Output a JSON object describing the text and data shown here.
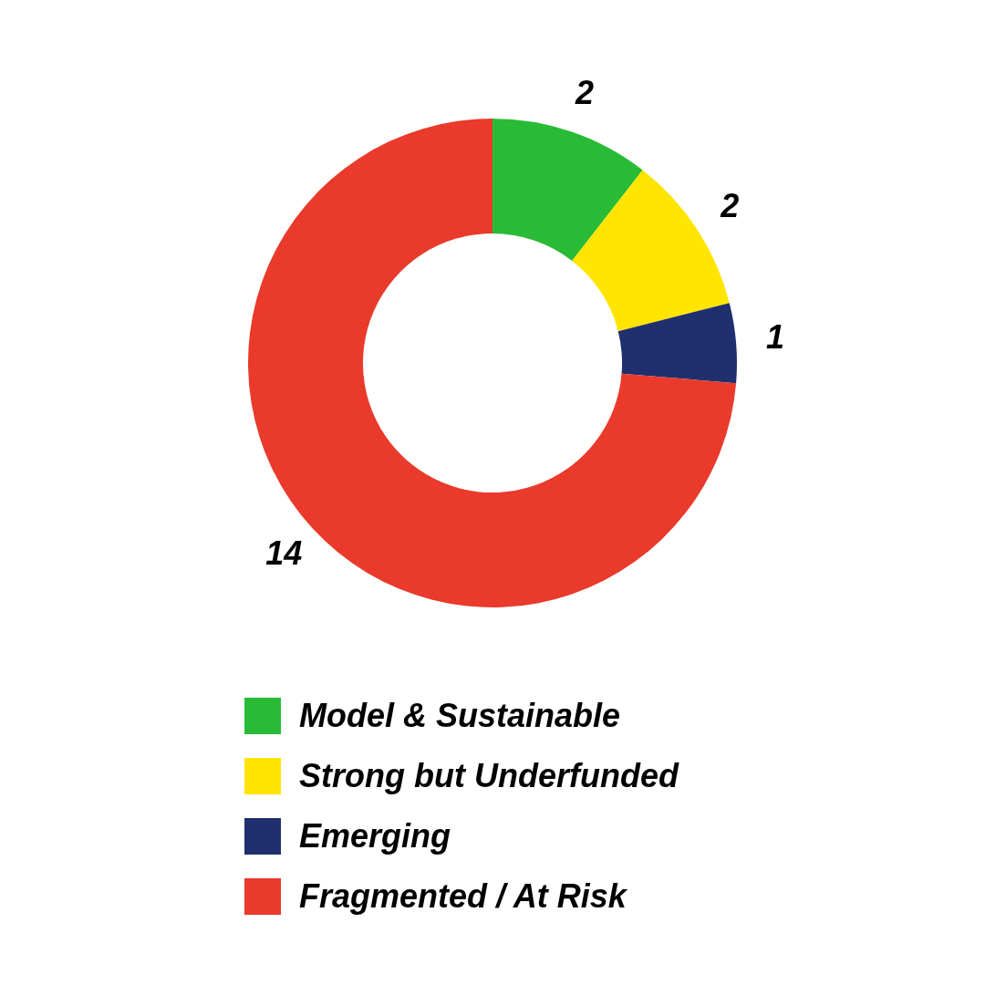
{
  "chart_data": {
    "type": "donut",
    "categories": [
      "Model & Sustainable",
      "Strong but Underfunded",
      "Emerging",
      "Fragmented / At Risk"
    ],
    "values": [
      2,
      2,
      1,
      14
    ],
    "colors": [
      "#2abb36",
      "#ffe500",
      "#20306e",
      "#e93a2b"
    ],
    "data_labels": true,
    "legend": "bottom"
  }
}
